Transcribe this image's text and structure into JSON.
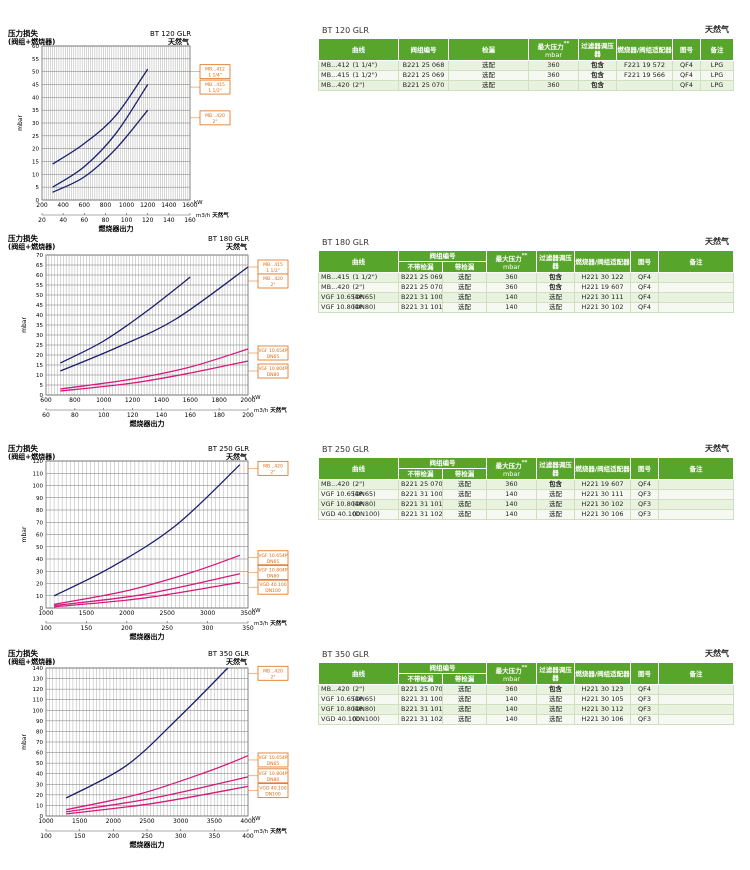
{
  "labels": {
    "pressure_drop": "压力损失",
    "valve_plus_burner": "(阀组+燃烧器)",
    "natural_gas": "天然气",
    "ylabel": "mbar",
    "xlabel": "燃烧器出力",
    "unit_kw": "kW",
    "unit_flow": "m3/h",
    "unit_flow_sup": "3"
  },
  "colors": {
    "navy": "#1b1f6b",
    "magenta": "#d6197c",
    "orange": "#e06c12",
    "green": "#58a52c"
  },
  "chart_data": [
    {
      "type": "line",
      "title": "BT 120 GLR",
      "gas": "天然气",
      "xlim": [
        200,
        1600
      ],
      "x_ticks": [
        200,
        400,
        600,
        800,
        1000,
        1200,
        1400,
        1600
      ],
      "ylim": [
        0,
        60
      ],
      "y_ticks": [
        0,
        5,
        10,
        15,
        20,
        25,
        30,
        35,
        40,
        45,
        50,
        55,
        60
      ],
      "x2_ticks": [
        20,
        40,
        60,
        80,
        100,
        120,
        140,
        160
      ],
      "series": [
        {
          "name": "MB...412 1 1/4\"",
          "color": "navy",
          "x": [
            300,
            600,
            900,
            1200
          ],
          "y": [
            14,
            22,
            33,
            51
          ]
        },
        {
          "name": "MB...415 1 1/2\"",
          "color": "navy",
          "x": [
            300,
            600,
            900,
            1200
          ],
          "y": [
            5,
            13,
            26,
            45
          ]
        },
        {
          "name": "MB...420 2\"",
          "color": "navy",
          "x": [
            300,
            600,
            900,
            1200
          ],
          "y": [
            3,
            9,
            20,
            35
          ]
        }
      ],
      "legend": [
        {
          "l1": "MB...412",
          "l2": "1 1/4\"",
          "y": 50
        },
        {
          "l1": "MB...415",
          "l2": "1 1/2\"",
          "y": 44
        },
        {
          "l1": "MB...420",
          "l2": "2\"",
          "y": 32
        }
      ]
    },
    {
      "type": "line",
      "title": "BT 180 GLR",
      "gas": "天然气",
      "xlim": [
        600,
        2000
      ],
      "x_ticks": [
        600,
        800,
        1000,
        1200,
        1400,
        1600,
        1800,
        2000
      ],
      "ylim": [
        0,
        70
      ],
      "y_ticks": [
        0,
        5,
        10,
        15,
        20,
        25,
        30,
        35,
        40,
        45,
        50,
        55,
        60,
        65,
        70
      ],
      "x2_ticks": [
        60,
        80,
        100,
        120,
        140,
        160,
        180,
        200
      ],
      "series": [
        {
          "name": "MB...415 1 1/2\"",
          "color": "navy",
          "x": [
            700,
            1000,
            1300,
            1600
          ],
          "y": [
            16,
            27,
            42,
            59
          ]
        },
        {
          "name": "MB...420 2\"",
          "color": "navy",
          "x": [
            700,
            1100,
            1500,
            2000
          ],
          "y": [
            12,
            24,
            38,
            64
          ]
        },
        {
          "name": "VGF 10.654P DN65",
          "color": "magenta",
          "x": [
            700,
            1200,
            1600,
            2000
          ],
          "y": [
            3,
            8,
            14,
            23
          ]
        },
        {
          "name": "VGF 10.804P DN80",
          "color": "magenta",
          "x": [
            700,
            1200,
            1600,
            2000
          ],
          "y": [
            2,
            6,
            11,
            17
          ]
        }
      ],
      "legend": [
        {
          "l1": "MB...415",
          "l2": "1 1/2\"",
          "y": 64
        },
        {
          "l1": "MB...420",
          "l2": "2\"",
          "y": 57
        },
        {
          "l1": "VGF 10.654P",
          "l2": "DN65",
          "y": 21
        },
        {
          "l1": "VGF 10.804P",
          "l2": "DN80",
          "y": 12
        }
      ]
    },
    {
      "type": "line",
      "title": "BT 250 GLR",
      "gas": "天然气",
      "xlim": [
        1000,
        3500
      ],
      "x_ticks": [
        1000,
        1500,
        2000,
        2500,
        3000,
        3500
      ],
      "ylim": [
        0,
        120
      ],
      "y_ticks": [
        0,
        10,
        20,
        30,
        40,
        50,
        60,
        70,
        80,
        90,
        100,
        110,
        120
      ],
      "x2_ticks": [
        100,
        150,
        200,
        250,
        300,
        350
      ],
      "series": [
        {
          "name": "MB...420 2\"",
          "color": "navy",
          "x": [
            1100,
            1800,
            2600,
            3400
          ],
          "y": [
            10,
            33,
            67,
            117
          ]
        },
        {
          "name": "VGF 10.654P DN65",
          "color": "magenta",
          "x": [
            1100,
            2000,
            2800,
            3400
          ],
          "y": [
            3,
            14,
            29,
            43
          ]
        },
        {
          "name": "VGF 10.804P DN80",
          "color": "magenta",
          "x": [
            1100,
            2200,
            3400
          ],
          "y": [
            2,
            11,
            28
          ]
        },
        {
          "name": "VGD 40.100 DN100",
          "color": "magenta",
          "x": [
            1100,
            2200,
            3400
          ],
          "y": [
            1,
            8,
            21
          ]
        }
      ],
      "legend": [
        {
          "l1": "MB...420",
          "l2": "2\"",
          "y": 114
        },
        {
          "l1": "VGF 10.654P",
          "l2": "DN65",
          "y": 41
        },
        {
          "l1": "VGF 10.804P",
          "l2": "DN80",
          "y": 29
        },
        {
          "l1": "VGD 40.100",
          "l2": "DN100",
          "y": 17
        }
      ]
    },
    {
      "type": "line",
      "title": "BT 350 GLR",
      "gas": "天然气",
      "xlim": [
        1000,
        4000
      ],
      "x_ticks": [
        1000,
        1500,
        2000,
        2500,
        3000,
        3500,
        4000
      ],
      "ylim": [
        0,
        140
      ],
      "y_ticks": [
        0,
        10,
        20,
        30,
        40,
        50,
        60,
        70,
        80,
        90,
        100,
        110,
        120,
        130,
        140
      ],
      "x2_ticks": [
        100,
        150,
        200,
        250,
        300,
        350,
        400
      ],
      "series": [
        {
          "name": "MB...420 2\"",
          "color": "navy",
          "x": [
            1300,
            2200,
            3000,
            3700
          ],
          "y": [
            17,
            48,
            95,
            140
          ]
        },
        {
          "name": "VGF 10.654P DN65",
          "color": "magenta",
          "x": [
            1300,
            2400,
            3400,
            4000
          ],
          "y": [
            6,
            21,
            42,
            57
          ]
        },
        {
          "name": "VGF 10.804P DN80",
          "color": "magenta",
          "x": [
            1300,
            2600,
            4000
          ],
          "y": [
            4,
            17,
            37
          ]
        },
        {
          "name": "VGD 40.100 DN100",
          "color": "magenta",
          "x": [
            1300,
            2600,
            4000
          ],
          "y": [
            2,
            12,
            28
          ]
        }
      ],
      "legend": [
        {
          "l1": "MB...420",
          "l2": "2\"",
          "y": 135
        },
        {
          "l1": "VGF 10.654P",
          "l2": "DN65",
          "y": 53
        },
        {
          "l1": "VGF 10.804P",
          "l2": "DN80",
          "y": 38
        },
        {
          "l1": "VGD 40.100",
          "l2": "DN100",
          "y": 24
        }
      ]
    }
  ],
  "tables": [
    {
      "model": "BT 120 GLR",
      "gas": "天然气",
      "headers": {
        "curve": "曲线",
        "valve_code": "阀组编号",
        "leak_check": "检漏",
        "max_pressure": "最大压力",
        "max_pressure_sup": "**",
        "max_pressure_unit": "mbar",
        "filter_regulator": "过滤器调压器",
        "adapter": "燃烧器/阀组适配器",
        "drawing": "图号",
        "note": "备注"
      },
      "rows": [
        {
          "curve": "MB...412",
          "size": "(1 1/4\")",
          "code": "B221 25 068",
          "check": "选配",
          "pressure": "360",
          "filter": "包含",
          "adapter": "F221 19 572",
          "drawing": "QF4",
          "note": "LPG"
        },
        {
          "curve": "MB...415",
          "size": "(1 1/2\")",
          "code": "B221 25 069",
          "check": "选配",
          "pressure": "360",
          "filter": "包含",
          "adapter": "F221 19 566",
          "drawing": "QF4",
          "note": "LPG"
        },
        {
          "curve": "MB...420",
          "size": "(2\")",
          "code": "B221 25 070",
          "check": "选配",
          "pressure": "360",
          "filter": "包含",
          "adapter": "",
          "drawing": "QF4",
          "note": "LPG"
        }
      ]
    },
    {
      "model": "BT 180 GLR",
      "gas": "天然气",
      "headers": {
        "curve": "曲线",
        "valve_code": "阀组编号",
        "no_leak": "不带检漏",
        "with_leak": "带检漏",
        "max_pressure": "最大压力",
        "max_pressure_sup": "**",
        "max_pressure_unit": "mbar",
        "filter_regulator": "过滤器调压器",
        "adapter": "燃烧器/阀组适配器",
        "drawing": "图号",
        "note": "备注"
      },
      "rows": [
        {
          "curve": "MB...415",
          "size": "(1 1/2\")",
          "code": "B221 25 069",
          "check": "选配",
          "pressure": "360",
          "filter": "包含",
          "adapter": "H221 30 122",
          "drawing": "QF4",
          "note": ""
        },
        {
          "curve": "MB...420",
          "size": "(2\")",
          "code": "B221 25 070",
          "check": "选配",
          "pressure": "360",
          "filter": "包含",
          "adapter": "H221 19 607",
          "drawing": "QF4",
          "note": ""
        },
        {
          "curve": "VGF 10.654P",
          "size": "(DN65)",
          "code": "B221 31 100",
          "check": "选配",
          "pressure": "140",
          "filter": "选配",
          "adapter": "H221 30 111",
          "drawing": "QF4",
          "note": ""
        },
        {
          "curve": "VGF 10.804P",
          "size": "(DN80)",
          "code": "B221 31 101",
          "check": "选配",
          "pressure": "140",
          "filter": "选配",
          "adapter": "H221 30 102",
          "drawing": "QF4",
          "note": ""
        }
      ]
    },
    {
      "model": "BT 250 GLR",
      "gas": "天然气",
      "headers": {
        "curve": "曲线",
        "valve_code": "阀组编号",
        "no_leak": "不带检漏",
        "with_leak": "带检漏",
        "max_pressure": "最大压力",
        "max_pressure_sup": "**",
        "max_pressure_unit": "mbar",
        "filter_regulator": "过滤器调压器",
        "adapter": "燃烧器/阀组适配器",
        "drawing": "图号",
        "note": "备注"
      },
      "rows": [
        {
          "curve": "MB...420",
          "size": "(2\")",
          "code": "B221 25 070",
          "check": "选配",
          "pressure": "360",
          "filter": "包含",
          "adapter": "H221 19 607",
          "drawing": "QF4",
          "note": ""
        },
        {
          "curve": "VGF 10.654P",
          "size": "(DN65)",
          "code": "B221 31 100",
          "check": "选配",
          "pressure": "140",
          "filter": "选配",
          "adapter": "H221 30 111",
          "drawing": "QF3",
          "note": ""
        },
        {
          "curve": "VGF 10.804P",
          "size": "(DN80)",
          "code": "B221 31 101",
          "check": "选配",
          "pressure": "140",
          "filter": "选配",
          "adapter": "H221 30 102",
          "drawing": "QF3",
          "note": ""
        },
        {
          "curve": "VGD 40.100",
          "size": "(DN100)",
          "code": "B221 31 102",
          "check": "选配",
          "pressure": "140",
          "filter": "选配",
          "adapter": "H221 30 106",
          "drawing": "QF3",
          "note": ""
        }
      ]
    },
    {
      "model": "BT 350 GLR",
      "gas": "天然气",
      "headers": {
        "curve": "曲线",
        "valve_code": "阀组编号",
        "no_leak": "不带检漏",
        "with_leak": "带检漏",
        "max_pressure": "最大压力",
        "max_pressure_sup": "**",
        "max_pressure_unit": "mbar",
        "filter_regulator": "过滤器调压器",
        "adapter": "燃烧器/阀组适配器",
        "drawing": "图号",
        "note": "备注"
      },
      "rows": [
        {
          "curve": "MB...420",
          "size": "(2\")",
          "code": "B221 25 070",
          "check": "选配",
          "pressure": "360",
          "filter": "包含",
          "adapter": "H221 30 123",
          "drawing": "QF4",
          "note": ""
        },
        {
          "curve": "VGF 10.654P",
          "size": "(DN65)",
          "code": "B221 31 100",
          "check": "选配",
          "pressure": "140",
          "filter": "选配",
          "adapter": "H221 30 105",
          "drawing": "QF3",
          "note": ""
        },
        {
          "curve": "VGF 10.804P",
          "size": "(DN80)",
          "code": "B221 31 101",
          "check": "选配",
          "pressure": "140",
          "filter": "选配",
          "adapter": "H221 30 112",
          "drawing": "QF3",
          "note": ""
        },
        {
          "curve": "VGD 40.100",
          "size": "(DN100)",
          "code": "B221 31 102",
          "check": "选配",
          "pressure": "140",
          "filter": "选配",
          "adapter": "H221 30 106",
          "drawing": "QF3",
          "note": ""
        }
      ]
    }
  ]
}
